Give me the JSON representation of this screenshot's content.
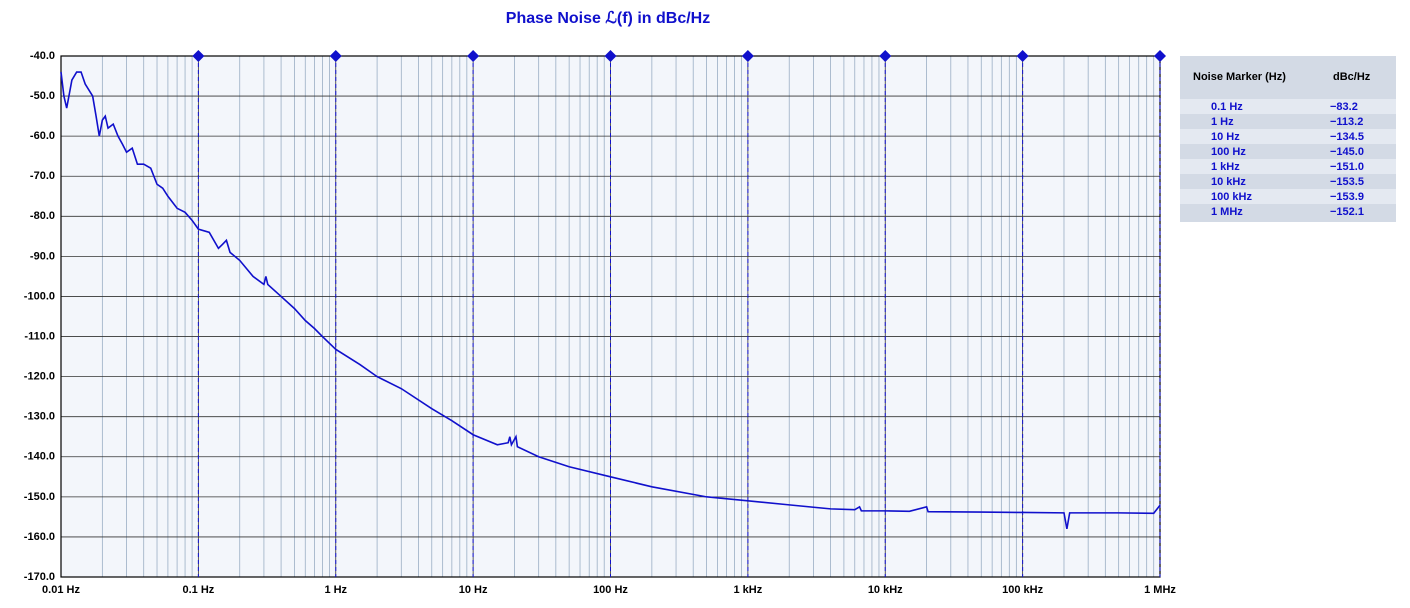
{
  "chart_data": {
    "type": "line",
    "title": "Phase Noise ℒ(f) in dBc/Hz",
    "x_scale": "log",
    "xlim": [
      0.01,
      1000000
    ],
    "xticks": [
      {
        "value": 0.01,
        "label": "0.01 Hz"
      },
      {
        "value": 0.1,
        "label": "0.1 Hz"
      },
      {
        "value": 1,
        "label": "1 Hz"
      },
      {
        "value": 10,
        "label": "10 Hz"
      },
      {
        "value": 100,
        "label": "100 Hz"
      },
      {
        "value": 1000,
        "label": "1 kHz"
      },
      {
        "value": 10000,
        "label": "10 kHz"
      },
      {
        "value": 100000,
        "label": "100 kHz"
      },
      {
        "value": 1000000,
        "label": "1 MHz"
      }
    ],
    "ylim": [
      -170,
      -40
    ],
    "yticks": [
      {
        "value": -40,
        "label": "-40.0"
      },
      {
        "value": -50,
        "label": "-50.0"
      },
      {
        "value": -60,
        "label": "-60.0"
      },
      {
        "value": -70,
        "label": "-70.0"
      },
      {
        "value": -80,
        "label": "-80.0"
      },
      {
        "value": -90,
        "label": "-90.0"
      },
      {
        "value": -100,
        "label": "-100.0"
      },
      {
        "value": -110,
        "label": "-110.0"
      },
      {
        "value": -120,
        "label": "-120.0"
      },
      {
        "value": -130,
        "label": "-130.0"
      },
      {
        "value": -140,
        "label": "-140.0"
      },
      {
        "value": -150,
        "label": "-150.0"
      },
      {
        "value": -160,
        "label": "-160.0"
      },
      {
        "value": -170,
        "label": "-170.0"
      }
    ],
    "grid": true,
    "series": [
      {
        "color": "#1010cc",
        "x": [
          0.01,
          0.0105,
          0.011,
          0.012,
          0.013,
          0.014,
          0.015,
          0.017,
          0.018,
          0.019,
          0.02,
          0.021,
          0.022,
          0.024,
          0.026,
          0.028,
          0.03,
          0.033,
          0.036,
          0.04,
          0.045,
          0.05,
          0.055,
          0.06,
          0.07,
          0.08,
          0.09,
          0.1,
          0.12,
          0.14,
          0.15,
          0.16,
          0.17,
          0.2,
          0.25,
          0.3,
          0.31,
          0.32,
          0.4,
          0.5,
          0.6,
          0.7,
          0.8,
          1,
          1.5,
          2,
          3,
          5,
          7,
          10,
          15,
          18,
          18.5,
          19,
          20.5,
          21,
          30,
          50,
          100,
          200,
          500,
          1000,
          2000,
          4000,
          6000,
          6500,
          6700,
          10000,
          15000,
          20000,
          20500,
          50000,
          100000,
          200000,
          210000,
          220000,
          500000,
          900000,
          1000000
        ],
        "values": [
          -44,
          -50,
          -53,
          -46,
          -44,
          -44,
          -47,
          -50,
          -55,
          -60,
          -56,
          -55,
          -58,
          -57,
          -60,
          -62,
          -64,
          -63,
          -67,
          -67,
          -68,
          -72,
          -73,
          -75,
          -78,
          -79,
          -81,
          -83.2,
          -84,
          -88,
          -87,
          -86,
          -89,
          -91,
          -95,
          -97,
          -95,
          -97,
          -100,
          -103,
          -106,
          -108,
          -110,
          -113.2,
          -117,
          -120,
          -123,
          -128,
          -131,
          -134.5,
          -137,
          -136.5,
          -135,
          -137,
          -135,
          -137.5,
          -140,
          -142.5,
          -145,
          -147.5,
          -150,
          -151,
          -152,
          -153,
          -153.2,
          -152.5,
          -153.5,
          -153.5,
          -153.6,
          -152.5,
          -153.7,
          -153.8,
          -153.9,
          -154,
          -158,
          -154,
          -154,
          -154.1,
          -152.1
        ]
      }
    ],
    "markers": {
      "header": [
        "Noise Marker (Hz)",
        "dBc/Hz"
      ],
      "color": "#1010cc",
      "x": [
        0.1,
        1,
        10,
        100,
        1000,
        10000,
        100000,
        1000000
      ],
      "labels": [
        "0.1 Hz",
        "1 Hz",
        "10 Hz",
        "100 Hz",
        "1 kHz",
        "10 kHz",
        "100 kHz",
        "1 MHz"
      ],
      "values": [
        -83.2,
        -113.2,
        -134.5,
        -145.0,
        -151.0,
        -153.5,
        -153.9,
        -152.1
      ],
      "value_labels": [
        "−83.2",
        "−113.2",
        "−134.5",
        "−145.0",
        "−151.0",
        "−153.5",
        "−153.9",
        "−152.1"
      ]
    }
  }
}
